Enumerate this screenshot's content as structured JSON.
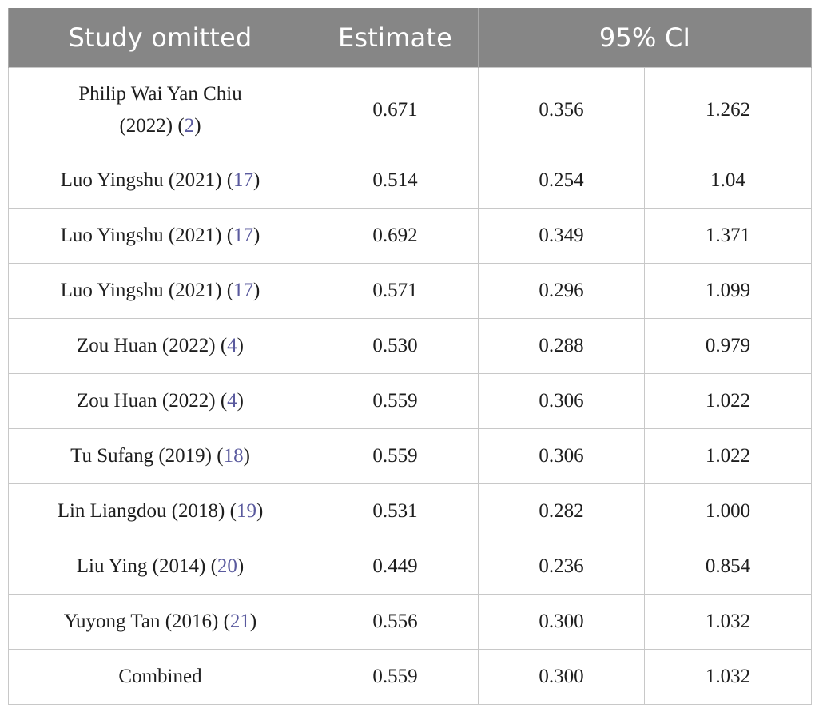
{
  "headers": {
    "study": "Study omitted",
    "estimate": "Estimate",
    "ci": "95% CI"
  },
  "rows": [
    {
      "study_line1": "Philip Wai Yan Chiu",
      "study_line2": "(2022) (",
      "ref": "2",
      "estimate": "0.671",
      "ci_low": "0.356",
      "ci_high": "1.262"
    },
    {
      "study": "Luo Yingshu (2021) (",
      "ref": "17",
      "estimate": "0.514",
      "ci_low": "0.254",
      "ci_high": "1.04"
    },
    {
      "study": "Luo Yingshu (2021) (",
      "ref": "17",
      "estimate": "0.692",
      "ci_low": "0.349",
      "ci_high": "1.371"
    },
    {
      "study": "Luo Yingshu (2021) (",
      "ref": "17",
      "estimate": "0.571",
      "ci_low": "0.296",
      "ci_high": "1.099"
    },
    {
      "study": "Zou Huan (2022) (",
      "ref": "4",
      "estimate": "0.530",
      "ci_low": "0.288",
      "ci_high": "0.979"
    },
    {
      "study": "Zou Huan (2022) (",
      "ref": "4",
      "estimate": "0.559",
      "ci_low": "0.306",
      "ci_high": "1.022"
    },
    {
      "study": "Tu Sufang (2019) (",
      "ref": "18",
      "estimate": "0.559",
      "ci_low": "0.306",
      "ci_high": "1.022"
    },
    {
      "study": "Lin Liangdou (2018) (",
      "ref": "19",
      "estimate": "0.531",
      "ci_low": "0.282",
      "ci_high": "1.000"
    },
    {
      "study": "Liu Ying (2014) (",
      "ref": "20",
      "estimate": "0.449",
      "ci_low": "0.236",
      "ci_high": "0.854"
    },
    {
      "study": "Yuyong Tan (2016) (",
      "ref": "21",
      "estimate": "0.556",
      "ci_low": "0.300",
      "ci_high": "1.032"
    },
    {
      "study": "Combined",
      "estimate": "0.559",
      "ci_low": "0.300",
      "ci_high": "1.032"
    }
  ],
  "close_paren": ")",
  "colors": {
    "header_bg": "#868686",
    "header_text": "#ffffff",
    "reference_link": "#5a5a9e",
    "grid": "#c8c8c8"
  }
}
